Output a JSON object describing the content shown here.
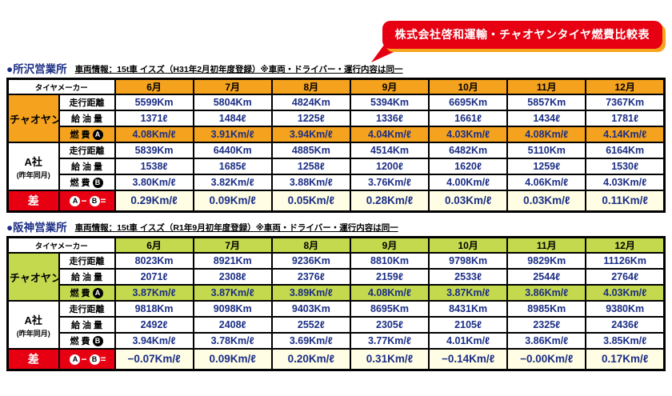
{
  "badge": {
    "title": "株式会社啓和運輸・チャオヤンタイヤ燃費比較表"
  },
  "colors": {
    "red": "#E60012",
    "orange": "#F5A31E",
    "orange_shadow": "#F6A51D",
    "lime": "#C4D94E",
    "navy": "#1B2E85",
    "pale_yellow": "#FFFDE3"
  },
  "tables": [
    {
      "office": "●所沢営業所",
      "info": "車両情報：15t車 イスズ（H31年2月初年度登録）※車両・ドライバー・運行内容は同一",
      "theme": "orange",
      "maker_header": "タイヤメーカー",
      "months": [
        "6月",
        "7月",
        "8月",
        "9月",
        "10月",
        "11月",
        "12月"
      ],
      "groups": [
        {
          "maker": "チャオヤン",
          "maker_sub": "",
          "themed": true,
          "rows": [
            {
              "label": "走行距離",
              "badge": "",
              "highlight": false,
              "values": [
                "5599Km",
                "5804Km",
                "4824Km",
                "5394Km",
                "6695Km",
                "5857Km",
                "7367Km"
              ]
            },
            {
              "label": "給 油 量",
              "badge": "",
              "highlight": false,
              "values": [
                "1371ℓ",
                "1484ℓ",
                "1225ℓ",
                "1336ℓ",
                "1661ℓ",
                "1434ℓ",
                "1781ℓ"
              ]
            },
            {
              "label": "燃 費",
              "badge": "A",
              "highlight": true,
              "values": [
                "4.08Km/ℓ",
                "3.91Km/ℓ",
                "3.94Km/ℓ",
                "4.04Km/ℓ",
                "4.03Km/ℓ",
                "4.08Km/ℓ",
                "4.14Km/ℓ"
              ]
            }
          ]
        },
        {
          "maker": "A社",
          "maker_sub": "(昨年同月)",
          "themed": false,
          "rows": [
            {
              "label": "走行距離",
              "badge": "",
              "highlight": false,
              "values": [
                "5839Km",
                "6440Km",
                "4885Km",
                "4514Km",
                "6482Km",
                "5110Km",
                "6164Km"
              ]
            },
            {
              "label": "給 油 量",
              "badge": "",
              "highlight": false,
              "values": [
                "1538ℓ",
                "1685ℓ",
                "1258ℓ",
                "1200ℓ",
                "1620ℓ",
                "1259ℓ",
                "1530ℓ"
              ]
            },
            {
              "label": "燃 費",
              "badge": "B",
              "highlight": false,
              "values": [
                "3.80Km/ℓ",
                "3.82Km/ℓ",
                "3.88Km/ℓ",
                "3.76Km/ℓ",
                "4.00Km/ℓ",
                "4.06Km/ℓ",
                "4.03Km/ℓ"
              ]
            }
          ]
        }
      ],
      "diff": {
        "label": "差",
        "badge_a": "A",
        "minus": "−",
        "badge_b": "B",
        "equals": "=",
        "values": [
          "0.29Km/ℓ",
          "0.09Km/ℓ",
          "0.05Km/ℓ",
          "0.28Km/ℓ",
          "0.03Km/ℓ",
          "0.03Km/ℓ",
          "0.11Km/ℓ"
        ]
      }
    },
    {
      "office": "●阪神営業所",
      "info": "車両情報：15t車 イスズ（R1年9月初年度登録）※車両・ドライバー・運行内容は同一",
      "theme": "lime",
      "maker_header": "タイヤメーカー",
      "months": [
        "6月",
        "7月",
        "8月",
        "9月",
        "10月",
        "11月",
        "12月"
      ],
      "groups": [
        {
          "maker": "チャオヤン",
          "maker_sub": "",
          "themed": true,
          "rows": [
            {
              "label": "走行距離",
              "badge": "",
              "highlight": false,
              "values": [
                "8023Km",
                "8921Km",
                "9236Km",
                "8810Km",
                "9798Km",
                "9829Km",
                "11126Km"
              ]
            },
            {
              "label": "給 油 量",
              "badge": "",
              "highlight": false,
              "values": [
                "2071ℓ",
                "2308ℓ",
                "2376ℓ",
                "2159ℓ",
                "2533ℓ",
                "2544ℓ",
                "2764ℓ"
              ]
            },
            {
              "label": "燃 費",
              "badge": "A",
              "highlight": true,
              "values": [
                "3.87Km/ℓ",
                "3.87Km/ℓ",
                "3.89Km/ℓ",
                "4.08Km/ℓ",
                "3.87Km/ℓ",
                "3.86Km/ℓ",
                "4.03Km/ℓ"
              ]
            }
          ]
        },
        {
          "maker": "A社",
          "maker_sub": "(昨年同月)",
          "themed": false,
          "rows": [
            {
              "label": "走行距離",
              "badge": "",
              "highlight": false,
              "values": [
                "9818Km",
                "9098Km",
                "9403Km",
                "8695Km",
                "8431Km",
                "8985Km",
                "9380Km"
              ]
            },
            {
              "label": "給 油 量",
              "badge": "",
              "highlight": false,
              "values": [
                "2492ℓ",
                "2408ℓ",
                "2552ℓ",
                "2305ℓ",
                "2105ℓ",
                "2325ℓ",
                "2436ℓ"
              ]
            },
            {
              "label": "燃 費",
              "badge": "B",
              "highlight": false,
              "values": [
                "3.94Km/ℓ",
                "3.78Km/ℓ",
                "3.69Km/ℓ",
                "3.77Km/ℓ",
                "4.01Km/ℓ",
                "3.86Km/ℓ",
                "3.85Km/ℓ"
              ]
            }
          ]
        }
      ],
      "diff": {
        "label": "差",
        "badge_a": "A",
        "minus": "−",
        "badge_b": "B",
        "equals": "=",
        "values": [
          "−0.07Km/ℓ",
          "0.09Km/ℓ",
          "0.20Km/ℓ",
          "0.31Km/ℓ",
          "−0.14Km/ℓ",
          "−0.00Km/ℓ",
          "0.17Km/ℓ"
        ]
      }
    }
  ]
}
